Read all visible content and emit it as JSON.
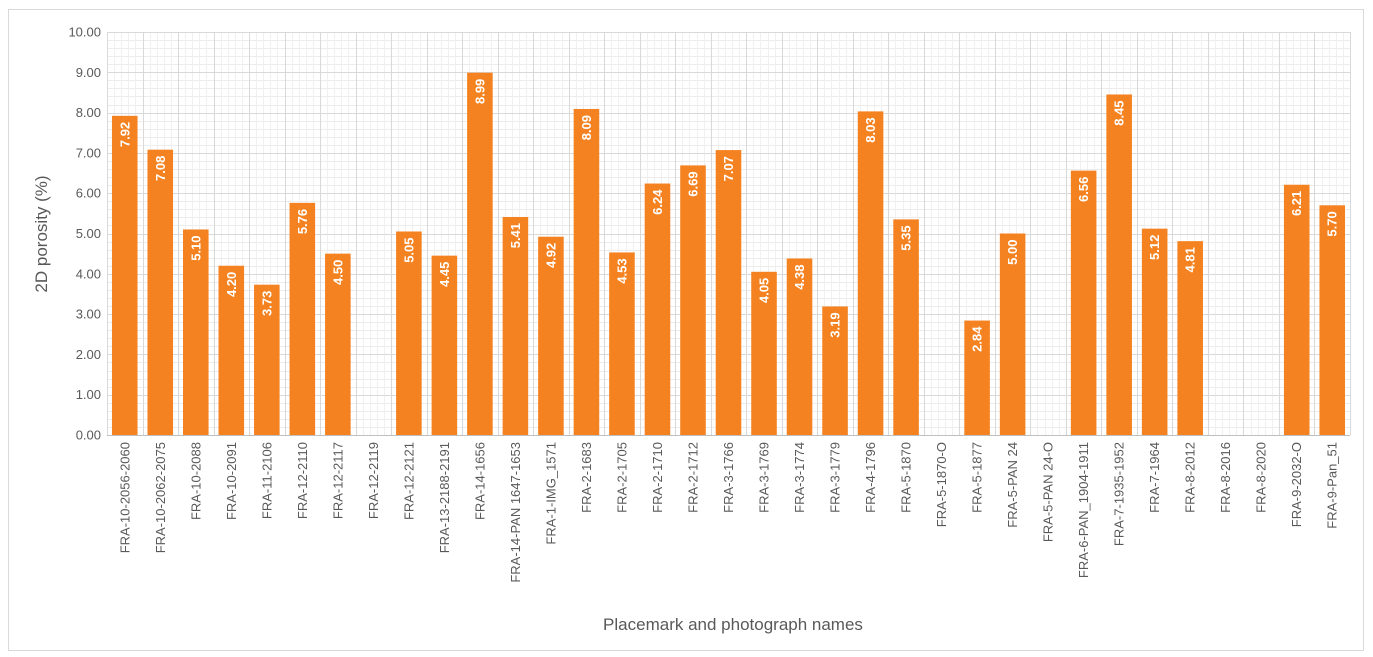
{
  "chart_data": {
    "type": "bar",
    "title": "",
    "xlabel": "Placemark and photograph names",
    "ylabel": "2D porosity (%)",
    "ylim": [
      0,
      10
    ],
    "y_major_step": 1,
    "y_minor_step": 0.2,
    "y_tick_labels": [
      "0.00",
      "1.00",
      "2.00",
      "3.00",
      "4.00",
      "5.00",
      "6.00",
      "7.00",
      "8.00",
      "9.00",
      "10.00"
    ],
    "grid": true,
    "legend": "none",
    "bar_color": "#f58220",
    "categories": [
      "FRA-10-2056-2060",
      "FRA-10-2062-2075",
      "FRA-10-2088",
      "FRA-10-2091",
      "FRA-11-2106",
      "FRA-12-2110",
      "FRA-12-2117",
      "FRA-12-2119",
      "FRA-12-2121",
      "FRA-13-2188-2191",
      "FRA-14-1656",
      "FRA-14-PAN 1647-1653",
      "FRA-1-IMG_1571",
      "FRA-2-1683",
      "FRA-2-1705",
      "FRA-2-1710",
      "FRA-2-1712",
      "FRA-3-1766",
      "FRA-3-1769",
      "FRA-3-1774",
      "FRA-3-1779",
      "FRA-4-1796",
      "FRA-5-1870",
      "FRA-5-1870-O",
      "FRA-5-1877",
      "FRA-5-PAN 24",
      "FRA-5-PAN 24-O",
      "FRA-6-PAN_1904-1911",
      "FRA-7-1935-1952",
      "FRA-7-1964",
      "FRA-8-2012",
      "FRA-8-2016",
      "FRA-8-2020",
      "FRA-9-2032-O",
      "FRA-9-Pan_51"
    ],
    "values": [
      7.92,
      7.08,
      5.1,
      4.2,
      3.73,
      5.76,
      4.5,
      null,
      5.05,
      4.45,
      8.99,
      5.41,
      4.92,
      8.09,
      4.53,
      6.24,
      6.69,
      7.07,
      4.05,
      4.38,
      3.19,
      8.03,
      5.35,
      null,
      2.84,
      5.0,
      null,
      6.56,
      8.45,
      5.12,
      4.81,
      null,
      null,
      6.21,
      5.7
    ],
    "data_labels": [
      "7.92",
      "7.08",
      "5.10",
      "4.20",
      "3.73",
      "5.76",
      "4.50",
      "",
      "5.05",
      "4.45",
      "8.99",
      "5.41",
      "4.92",
      "8.09",
      "4.53",
      "6.24",
      "6.69",
      "7.07",
      "4.05",
      "4.38",
      "3.19",
      "8.03",
      "5.35",
      "",
      "2.84",
      "5.00",
      "",
      "6.56",
      "8.45",
      "5.12",
      "4.81",
      "",
      "",
      "6.21",
      "5.70"
    ]
  }
}
